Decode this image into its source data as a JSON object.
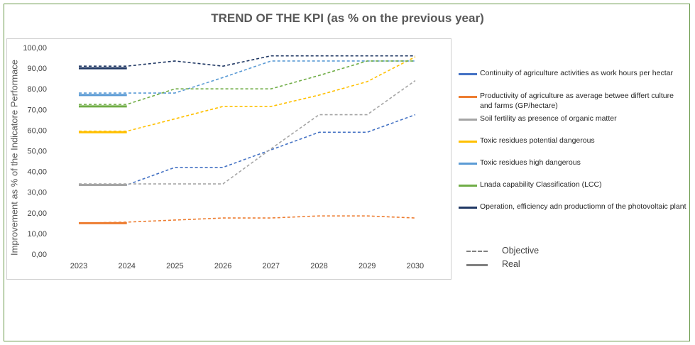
{
  "chart_data": {
    "type": "line",
    "title": "TREND OF THE KPI (as % on the previous year)",
    "ylabel": "Improvement as % of the Indicatore Performace",
    "xlabel": "",
    "categories": [
      "2023",
      "2024",
      "2025",
      "2026",
      "2027",
      "2028",
      "2029",
      "2030"
    ],
    "ylim": [
      0,
      100
    ],
    "y_ticks": [
      "0,00",
      "10,00",
      "20,00",
      "30,00",
      "40,00",
      "50,00",
      "60,00",
      "70,00",
      "80,00",
      "90,00",
      "100,00"
    ],
    "grid": false,
    "legend_position": "right",
    "series": [
      {
        "name": "Continuity of agriculture activities as work hours per hectar",
        "color": "#4472C4",
        "objective": [
          33.5,
          33.5,
          42,
          42,
          50.5,
          59,
          59,
          67.5
        ],
        "real": [
          33.5,
          33.5
        ]
      },
      {
        "name": "Productivity of agriculture as average betwee differt culture and farms (GP/hectare)",
        "color": "#ED7D31",
        "objective": [
          15,
          15.5,
          16.5,
          17.5,
          17.5,
          18.5,
          18.5,
          17.5
        ],
        "real": [
          15,
          15
        ]
      },
      {
        "name": "Soil fertility as presence of organic matter",
        "color": "#A5A5A5",
        "objective": [
          34,
          34,
          34,
          34,
          51,
          67.5,
          67.5,
          84
        ],
        "real": [
          33.5,
          33.5
        ]
      },
      {
        "name": "Toxic residues potential dangerous",
        "color": "#FFC000",
        "objective": [
          59.5,
          59.5,
          65.5,
          71.5,
          71.5,
          77,
          83.5,
          95.5
        ],
        "real": [
          59,
          59
        ]
      },
      {
        "name": "Toxic residues high dangerous",
        "color": "#5B9BD5",
        "objective": [
          78,
          78,
          78,
          85.5,
          93.5,
          93.5,
          93.5,
          93.5
        ],
        "real": [
          77,
          77
        ]
      },
      {
        "name": "Lnada capability Classification (LCC)",
        "color": "#70AD47",
        "objective": [
          72.5,
          72.5,
          80,
          80,
          80,
          86.5,
          93.5,
          93.5
        ],
        "real": [
          71.5,
          71.5
        ]
      },
      {
        "name": "Operation, efficiency adn productiomn of the photovoltaic plant",
        "color": "#203864",
        "objective": [
          91,
          91,
          93.5,
          91,
          96,
          96,
          96,
          96
        ],
        "real": [
          90,
          90
        ]
      }
    ],
    "style_key": [
      {
        "label": "Objective",
        "style": "dashed"
      },
      {
        "label": "Real",
        "style": "solid"
      }
    ]
  }
}
